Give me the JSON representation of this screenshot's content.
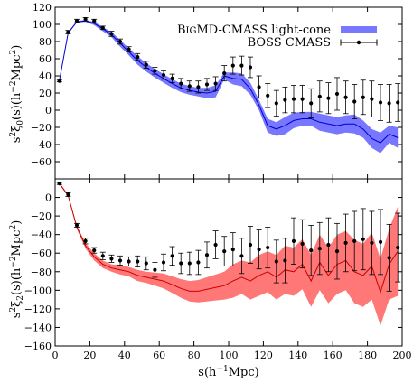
{
  "chart_data": [
    {
      "type": "line",
      "ylabel": "s²ξ₀(s)(h⁻²Mpc²)",
      "xlim": [
        0,
        200
      ],
      "ylim": [
        -80,
        120
      ],
      "yticks": [
        -60,
        -40,
        -20,
        0,
        20,
        40,
        60,
        80,
        100,
        120
      ],
      "legend_position": "top-right",
      "colors": {
        "band": "#7777ff",
        "model_line": "#0000cc",
        "data": "#000000"
      },
      "series": [
        {
          "name": "BigMD-CMASS light-cone",
          "kind": "band",
          "x": [
            2.5,
            7.5,
            12.5,
            17.5,
            22.5,
            27.5,
            32.5,
            37.5,
            42.5,
            47.5,
            52.5,
            57.5,
            62.5,
            67.5,
            72.5,
            77.5,
            82.5,
            87.5,
            92.5,
            97.5,
            102.5,
            107.5,
            112.5,
            117.5,
            122.5,
            127.5,
            132.5,
            137.5,
            142.5,
            147.5,
            152.5,
            157.5,
            162.5,
            167.5,
            172.5,
            177.5,
            182.5,
            187.5,
            192.5,
            197.5
          ],
          "mean": [
            35,
            90,
            103,
            104,
            101,
            95,
            88,
            78,
            68,
            58,
            50,
            43,
            37,
            31,
            26,
            23,
            21,
            20,
            22,
            40,
            37,
            36,
            25,
            6,
            -18,
            -22,
            -18,
            -12,
            -10,
            -10,
            -14,
            -16,
            -18,
            -16,
            -16,
            -22,
            -33,
            -38,
            -28,
            -32
          ],
          "upper": [
            36,
            91,
            104,
            105,
            103,
            97,
            91,
            82,
            72,
            63,
            55,
            48,
            42,
            36,
            31,
            28,
            26,
            26,
            29,
            44,
            44,
            43,
            32,
            12,
            -10,
            -14,
            -8,
            -3,
            -2,
            -2,
            -4,
            -6,
            -8,
            -6,
            -5,
            -12,
            -22,
            -26,
            -18,
            -20
          ],
          "lower": [
            34,
            89,
            102,
            103,
            99,
            92,
            85,
            74,
            64,
            53,
            45,
            38,
            32,
            26,
            21,
            18,
            16,
            14,
            15,
            36,
            30,
            28,
            18,
            0,
            -26,
            -30,
            -28,
            -21,
            -18,
            -18,
            -24,
            -26,
            -28,
            -26,
            -27,
            -32,
            -44,
            -50,
            -38,
            -44
          ]
        },
        {
          "name": "BOSS CMASS",
          "kind": "points_with_errors",
          "x": [
            2.5,
            7.5,
            12.5,
            17.5,
            22.5,
            27.5,
            32.5,
            37.5,
            42.5,
            47.5,
            52.5,
            57.5,
            62.5,
            67.5,
            72.5,
            77.5,
            82.5,
            87.5,
            92.5,
            97.5,
            102.5,
            107.5,
            112.5,
            117.5,
            122.5,
            127.5,
            132.5,
            137.5,
            142.5,
            147.5,
            152.5,
            157.5,
            162.5,
            167.5,
            172.5,
            177.5,
            182.5,
            187.5,
            192.5,
            197.5
          ],
          "y": [
            34,
            91,
            104,
            106,
            104,
            96,
            89,
            80,
            71,
            62,
            53,
            46,
            41,
            37,
            31,
            28,
            27,
            30,
            31,
            43,
            52,
            52,
            50,
            27,
            17,
            8,
            12,
            13,
            13,
            8,
            16,
            14,
            19,
            15,
            10,
            15,
            13,
            9,
            8,
            9
          ],
          "err": [
            1,
            2,
            2,
            2,
            2,
            2,
            3,
            3,
            3,
            4,
            4,
            4,
            5,
            5,
            6,
            6,
            7,
            7,
            8,
            9,
            10,
            11,
            12,
            13,
            14,
            15,
            15,
            16,
            16,
            17,
            18,
            18,
            19,
            19,
            20,
            20,
            21,
            21,
            22,
            22
          ]
        }
      ]
    },
    {
      "type": "line",
      "xlabel": "s(h⁻¹Mpc)",
      "ylabel": "s²ξ₂(s)(h⁻²Mpc²)",
      "xlim": [
        0,
        200
      ],
      "ylim": [
        -160,
        20
      ],
      "xticks": [
        0,
        20,
        40,
        60,
        80,
        100,
        120,
        140,
        160,
        180,
        200
      ],
      "yticks": [
        -160,
        -140,
        -120,
        -100,
        -80,
        -60,
        -40,
        -20,
        0
      ],
      "colors": {
        "band": "#ff7777",
        "model_line": "#cc0000",
        "data": "#000000"
      },
      "series": [
        {
          "kind": "band",
          "x": [
            2.5,
            7.5,
            12.5,
            17.5,
            22.5,
            27.5,
            32.5,
            37.5,
            42.5,
            47.5,
            52.5,
            57.5,
            62.5,
            67.5,
            72.5,
            77.5,
            82.5,
            87.5,
            92.5,
            97.5,
            102.5,
            107.5,
            112.5,
            117.5,
            122.5,
            127.5,
            132.5,
            137.5,
            142.5,
            147.5,
            152.5,
            157.5,
            162.5,
            167.5,
            172.5,
            177.5,
            182.5,
            187.5,
            192.5,
            197.5
          ],
          "mean": [
            15,
            2,
            -32,
            -52,
            -64,
            -72,
            -76,
            -78,
            -80,
            -84,
            -86,
            -88,
            -90,
            -94,
            -98,
            -101,
            -101,
            -99,
            -97,
            -95,
            -90,
            -86,
            -90,
            -84,
            -80,
            -86,
            -78,
            -80,
            -72,
            -90,
            -70,
            -84,
            -72,
            -68,
            -80,
            -84,
            -74,
            -102,
            -72,
            -58
          ],
          "upper": [
            16,
            3,
            -30,
            -49,
            -60,
            -68,
            -72,
            -73,
            -75,
            -78,
            -80,
            -81,
            -82,
            -85,
            -88,
            -90,
            -89,
            -86,
            -83,
            -80,
            -72,
            -68,
            -70,
            -62,
            -58,
            -62,
            -52,
            -54,
            -45,
            -62,
            -40,
            -54,
            -40,
            -36,
            -46,
            -50,
            -38,
            -66,
            -34,
            -10
          ],
          "lower": [
            14,
            1,
            -34,
            -55,
            -68,
            -76,
            -80,
            -83,
            -85,
            -90,
            -92,
            -95,
            -98,
            -103,
            -108,
            -112,
            -113,
            -112,
            -111,
            -110,
            -108,
            -104,
            -110,
            -106,
            -102,
            -110,
            -104,
            -106,
            -99,
            -118,
            -100,
            -114,
            -104,
            -100,
            -114,
            -118,
            -110,
            -138,
            -110,
            -106
          ]
        },
        {
          "kind": "points_with_errors",
          "x": [
            2.5,
            7.5,
            12.5,
            17.5,
            22.5,
            27.5,
            32.5,
            37.5,
            42.5,
            47.5,
            52.5,
            57.5,
            62.5,
            67.5,
            72.5,
            77.5,
            82.5,
            87.5,
            92.5,
            97.5,
            102.5,
            107.5,
            112.5,
            117.5,
            122.5,
            127.5,
            132.5,
            137.5,
            142.5,
            147.5,
            152.5,
            157.5,
            162.5,
            167.5,
            172.5,
            177.5,
            182.5,
            187.5,
            192.5,
            197.5
          ],
          "y": [
            15,
            3,
            -30,
            -47,
            -57,
            -63,
            -66,
            -68,
            -69,
            -69,
            -71,
            -78,
            -70,
            -63,
            -71,
            -71,
            -70,
            -62,
            -51,
            -58,
            -56,
            -63,
            -51,
            -56,
            -54,
            -69,
            -68,
            -47,
            -50,
            -57,
            -55,
            -51,
            -58,
            -49,
            -47,
            -45,
            -49,
            -48,
            -65,
            -54
          ],
          "err": [
            1,
            2,
            2,
            3,
            3,
            4,
            4,
            5,
            5,
            6,
            7,
            8,
            9,
            10,
            11,
            12,
            13,
            14,
            15,
            16,
            18,
            19,
            20,
            21,
            22,
            23,
            24,
            25,
            26,
            27,
            28,
            29,
            30,
            31,
            32,
            33,
            34,
            35,
            36,
            37
          ]
        }
      ]
    }
  ]
}
